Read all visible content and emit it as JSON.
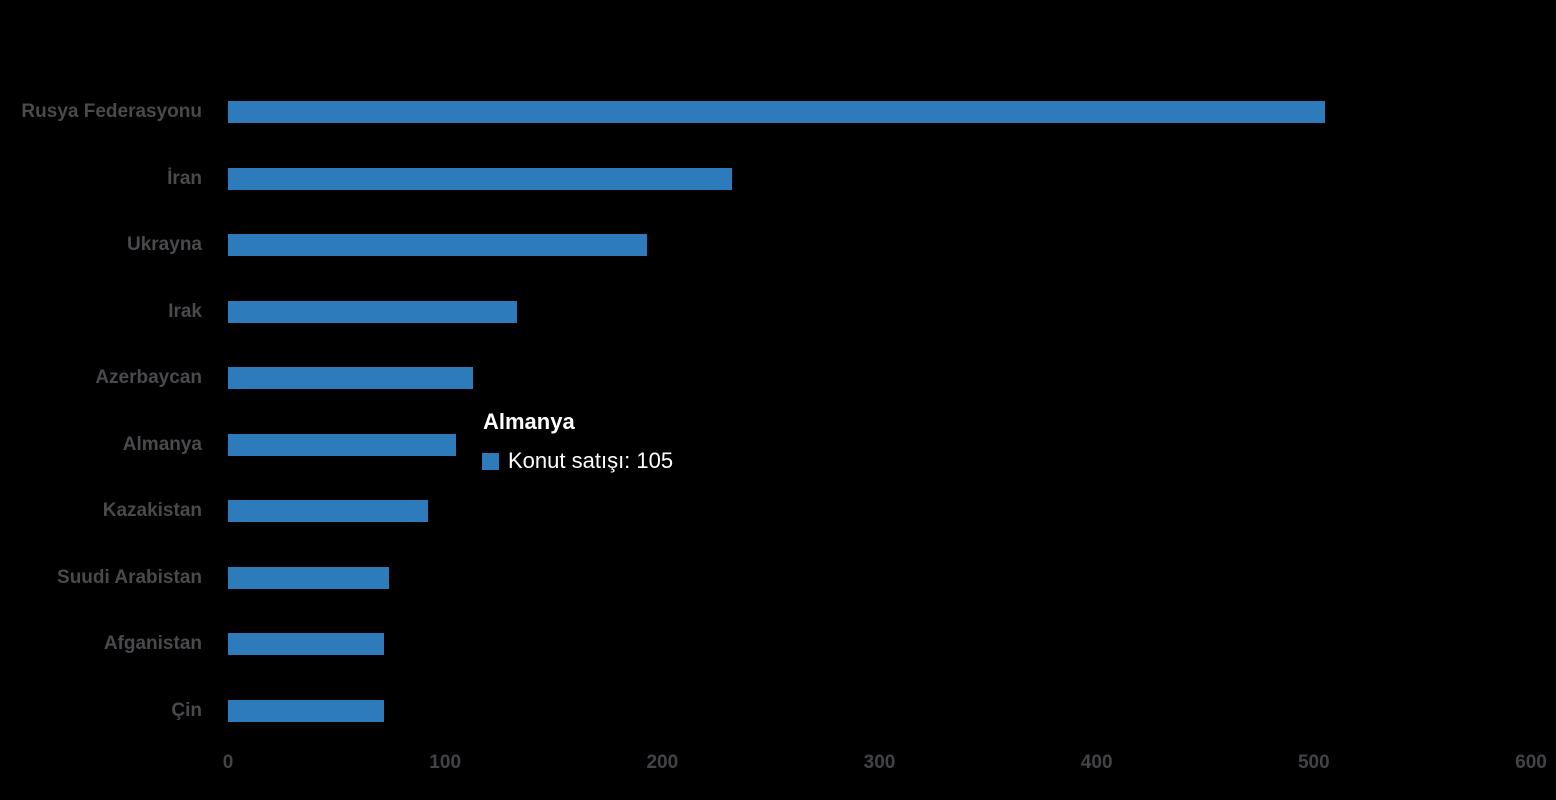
{
  "chart_data": {
    "type": "bar",
    "orientation": "horizontal",
    "title": "",
    "xlabel": "",
    "ylabel": "",
    "categories": [
      "Rusya Federasyonu",
      "İran",
      "Ukrayna",
      "Irak",
      "Azerbaycan",
      "Almanya",
      "Kazakistan",
      "Suudi Arabistan",
      "Afganistan",
      "Çin"
    ],
    "series": [
      {
        "name": "Konut satışı",
        "values": [
          505,
          232,
          193,
          133,
          113,
          105,
          92,
          74,
          72,
          72
        ]
      }
    ],
    "xlim": [
      0,
      600
    ],
    "x_ticks": [
      0,
      100,
      200,
      300,
      400,
      500,
      600
    ],
    "grid": false,
    "legend": "none",
    "bar_color": "#2d7bba",
    "category_label_color": "#4a4a4e",
    "tick_label_color": "#434347",
    "background_color": "#000000"
  },
  "tooltip": {
    "title": "Almanya",
    "series_name": "Konut satışı",
    "value": 105,
    "text": "Konut satışı: 105",
    "swatch_color": "#2d7bba",
    "text_color": "#ffffff"
  }
}
